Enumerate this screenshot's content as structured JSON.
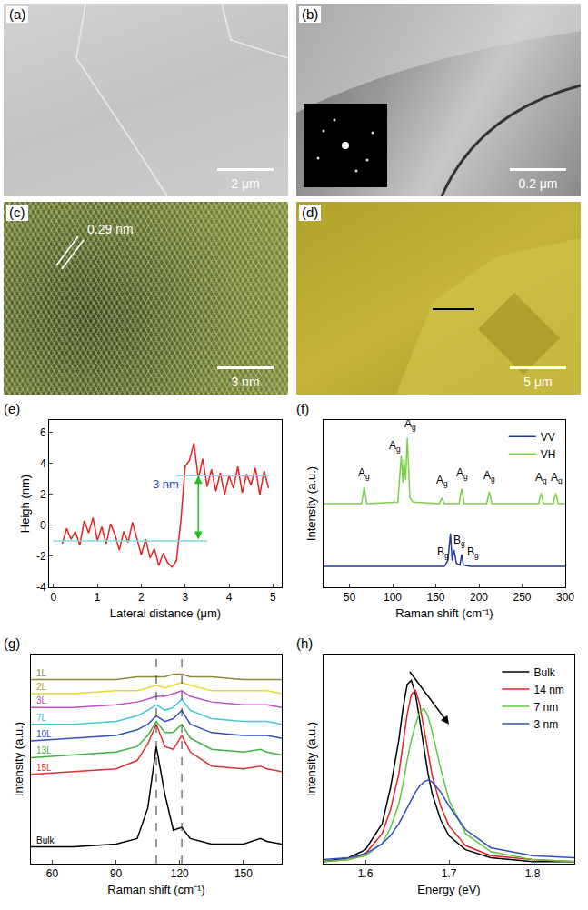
{
  "images": [
    {
      "panel": "(a)",
      "scale_bar": "2 μm"
    },
    {
      "panel": "(b)",
      "scale_bar": "0.2 μm"
    },
    {
      "panel": "(c)",
      "scale_bar": "3 nm",
      "annotation": "0.29 nm"
    },
    {
      "panel": "(d)",
      "scale_bar": "5 μm"
    }
  ],
  "chart_data": [
    {
      "panel": "(e)",
      "type": "line",
      "x_label": "Lateral distance (μm)",
      "y_label": "Heigh (nm)",
      "xlim": [
        -0.1,
        5.2
      ],
      "xticks": [
        0,
        1,
        2,
        3,
        4,
        5
      ],
      "ylim": [
        -4,
        6.8
      ],
      "yticks": [
        -4,
        -2,
        0,
        2,
        4,
        6
      ],
      "series": [
        {
          "color": "#e82020",
          "x": [
            0.2,
            0.3,
            0.4,
            0.5,
            0.6,
            0.7,
            0.8,
            0.9,
            1.0,
            1.1,
            1.2,
            1.3,
            1.4,
            1.5,
            1.6,
            1.7,
            1.8,
            1.9,
            2.0,
            2.1,
            2.2,
            2.3,
            2.4,
            2.5,
            2.6,
            2.7,
            2.8,
            2.9,
            3.0,
            3.1,
            3.2,
            3.3,
            3.4,
            3.5,
            3.6,
            3.7,
            3.8,
            3.9,
            4.0,
            4.1,
            4.2,
            4.3,
            4.4,
            4.5,
            4.6,
            4.7,
            4.8,
            4.9
          ],
          "values": [
            -1.2,
            -0.2,
            -0.9,
            -0.4,
            -1.3,
            0.3,
            -0.5,
            0.5,
            -1.0,
            -0.1,
            -1.2,
            0.1,
            -0.6,
            -1.6,
            -0.4,
            -1.1,
            0.2,
            -0.8,
            -1.9,
            -0.9,
            -2.1,
            -1.5,
            -2.6,
            -1.8,
            -2.4,
            -2.7,
            -2.3,
            0.2,
            3.8,
            4.2,
            5.3,
            3.0,
            4.3,
            2.5,
            3.6,
            2.2,
            3.4,
            2.0,
            3.2,
            2.4,
            3.8,
            2.1,
            3.3,
            2.6,
            3.7,
            2.0,
            3.5,
            2.4
          ]
        },
        {
          "color": "#7fd8e0",
          "x": [
            0,
            3.5
          ],
          "values": [
            -1,
            -1
          ]
        },
        {
          "color": "#7fd8e0",
          "x": [
            2.8,
            4.9
          ],
          "values": [
            3.2,
            3.2
          ]
        }
      ],
      "annotations": [
        {
          "text": "3 nm",
          "x": 2.55,
          "y": 2.1,
          "color": "#2a3fa0"
        }
      ],
      "arrow": {
        "x0": 3.3,
        "y0": -1,
        "x1": 3.3,
        "y1": 3.2,
        "color": "#22c022"
      }
    },
    {
      "panel": "(f)",
      "type": "line",
      "x_label": "Raman shift (cm⁻¹)",
      "y_label": "Intensity (a.u.)",
      "xlim": [
        20,
        300
      ],
      "xticks": [
        50,
        100,
        150,
        200,
        250,
        300
      ],
      "ylim": [
        0,
        1.12
      ],
      "tick_labels": "x",
      "legend": "top right",
      "series": [
        {
          "name": "VV",
          "color": "#1f3c99",
          "x": [
            20,
            160,
            164,
            167,
            169,
            171,
            174,
            178,
            180,
            182,
            190,
            300
          ],
          "values": [
            0.14,
            0.14,
            0.18,
            0.36,
            0.18,
            0.25,
            0.16,
            0.15,
            0.22,
            0.15,
            0.14,
            0.14
          ]
        },
        {
          "name": "VH",
          "color": "#7ccf4a",
          "x": [
            20,
            64,
            67,
            70,
            106,
            110,
            112,
            113,
            115,
            117,
            120,
            124,
            154,
            157,
            160,
            177,
            180,
            183,
            209,
            212,
            215,
            269,
            272,
            275,
            286,
            289,
            292,
            300
          ],
          "values": [
            0.56,
            0.56,
            0.67,
            0.56,
            0.57,
            0.88,
            0.7,
            0.86,
            0.72,
            1.0,
            0.6,
            0.57,
            0.56,
            0.6,
            0.56,
            0.56,
            0.66,
            0.56,
            0.56,
            0.64,
            0.56,
            0.56,
            0.63,
            0.56,
            0.56,
            0.63,
            0.56,
            0.56
          ]
        }
      ],
      "annotations": [
        {
          "text": "Ag",
          "x": 67,
          "y": 0.7
        },
        {
          "text": "Ag",
          "x": 103,
          "y": 0.88
        },
        {
          "text": "Ag",
          "x": 121,
          "y": 1.03
        },
        {
          "text": "Ag",
          "x": 157,
          "y": 0.65
        },
        {
          "text": "Ag",
          "x": 181,
          "y": 0.7
        },
        {
          "text": "Ag",
          "x": 212,
          "y": 0.68
        },
        {
          "text": "Ag",
          "x": 272,
          "y": 0.67
        },
        {
          "text": "Ag",
          "x": 290,
          "y": 0.67
        },
        {
          "text": "Bg",
          "x": 158,
          "y": 0.17
        },
        {
          "text": "Bg",
          "x": 177,
          "y": 0.25
        },
        {
          "text": "Bg",
          "x": 193,
          "y": 0.17
        }
      ]
    },
    {
      "panel": "(g)",
      "type": "line",
      "x_label": "Raman shift (cm⁻¹)",
      "y_label": "Intensity (a.u.)",
      "xlim": [
        50,
        168
      ],
      "xticks": [
        60,
        90,
        120,
        150
      ],
      "ylim": [
        0,
        0.75
      ],
      "tick_labels": "x",
      "vlines": [
        109,
        121
      ],
      "x": [
        50,
        70,
        90,
        100,
        105,
        109,
        113,
        117,
        121,
        125,
        135,
        150,
        158,
        161,
        168
      ],
      "series": [
        {
          "name": "1L",
          "color": "#8a8a3a",
          "values": [
            0.66,
            0.66,
            0.66,
            0.67,
            0.67,
            0.67,
            0.67,
            0.68,
            0.68,
            0.67,
            0.67,
            0.66,
            0.66,
            0.66,
            0.66
          ]
        },
        {
          "name": "2L",
          "color": "#e8d830",
          "values": [
            0.61,
            0.61,
            0.62,
            0.62,
            0.63,
            0.64,
            0.63,
            0.64,
            0.65,
            0.64,
            0.62,
            0.62,
            0.62,
            0.62,
            0.61
          ]
        },
        {
          "name": "3L",
          "color": "#c050c0",
          "values": [
            0.56,
            0.56,
            0.57,
            0.58,
            0.59,
            0.6,
            0.6,
            0.61,
            0.62,
            0.6,
            0.58,
            0.57,
            0.57,
            0.57,
            0.56
          ]
        },
        {
          "name": "7L",
          "color": "#40c8d8",
          "values": [
            0.5,
            0.5,
            0.51,
            0.53,
            0.55,
            0.57,
            0.55,
            0.56,
            0.59,
            0.55,
            0.52,
            0.51,
            0.51,
            0.51,
            0.5
          ]
        },
        {
          "name": "10L",
          "color": "#3050c0",
          "values": [
            0.44,
            0.45,
            0.46,
            0.48,
            0.5,
            0.53,
            0.51,
            0.52,
            0.55,
            0.5,
            0.47,
            0.46,
            0.46,
            0.46,
            0.45
          ]
        },
        {
          "name": "13L",
          "color": "#40b040",
          "values": [
            0.38,
            0.39,
            0.4,
            0.42,
            0.46,
            0.51,
            0.47,
            0.47,
            0.5,
            0.45,
            0.41,
            0.4,
            0.41,
            0.4,
            0.39
          ]
        },
        {
          "name": "15L",
          "color": "#e03030",
          "values": [
            0.32,
            0.33,
            0.34,
            0.37,
            0.43,
            0.5,
            0.42,
            0.41,
            0.46,
            0.4,
            0.35,
            0.34,
            0.35,
            0.34,
            0.33
          ]
        },
        {
          "name": "Bulk",
          "color": "#000000",
          "values": [
            0.06,
            0.06,
            0.07,
            0.09,
            0.2,
            0.42,
            0.25,
            0.12,
            0.13,
            0.09,
            0.07,
            0.07,
            0.09,
            0.08,
            0.07
          ]
        }
      ]
    },
    {
      "panel": "(h)",
      "type": "line",
      "x_label": "Energy (eV)",
      "y_label": "Intensity (a.u.)",
      "xlim": [
        1.55,
        1.85
      ],
      "xticks": [
        1.6,
        1.7,
        1.8
      ],
      "ylim": [
        0,
        1.05
      ],
      "tick_labels": "x",
      "legend": "top right",
      "x": [
        1.55,
        1.58,
        1.6,
        1.62,
        1.63,
        1.64,
        1.645,
        1.65,
        1.655,
        1.66,
        1.665,
        1.67,
        1.675,
        1.68,
        1.69,
        1.7,
        1.72,
        1.75,
        1.8,
        1.85
      ],
      "series": [
        {
          "name": "Bulk",
          "color": "#000000",
          "values": [
            0.01,
            0.03,
            0.07,
            0.2,
            0.38,
            0.62,
            0.78,
            0.9,
            0.92,
            0.85,
            0.72,
            0.58,
            0.45,
            0.35,
            0.22,
            0.14,
            0.07,
            0.03,
            0.01,
            0.01
          ]
        },
        {
          "name": "14 nm",
          "color": "#e82020",
          "values": [
            0.01,
            0.02,
            0.05,
            0.15,
            0.27,
            0.45,
            0.6,
            0.75,
            0.85,
            0.87,
            0.8,
            0.68,
            0.55,
            0.44,
            0.29,
            0.19,
            0.09,
            0.04,
            0.02,
            0.01
          ]
        },
        {
          "name": "7 nm",
          "color": "#5cc840",
          "values": [
            0.01,
            0.02,
            0.04,
            0.1,
            0.18,
            0.3,
            0.4,
            0.52,
            0.62,
            0.7,
            0.76,
            0.78,
            0.74,
            0.66,
            0.48,
            0.32,
            0.15,
            0.06,
            0.02,
            0.01
          ]
        },
        {
          "name": "3 nm",
          "color": "#3050c8",
          "values": [
            0.02,
            0.03,
            0.05,
            0.1,
            0.14,
            0.2,
            0.24,
            0.28,
            0.32,
            0.36,
            0.39,
            0.41,
            0.42,
            0.41,
            0.36,
            0.29,
            0.17,
            0.08,
            0.04,
            0.03
          ]
        }
      ],
      "arrow": {
        "x0": 1.652,
        "y0": 0.97,
        "x1": 1.7,
        "y1": 0.7,
        "color": "#000000"
      }
    }
  ]
}
